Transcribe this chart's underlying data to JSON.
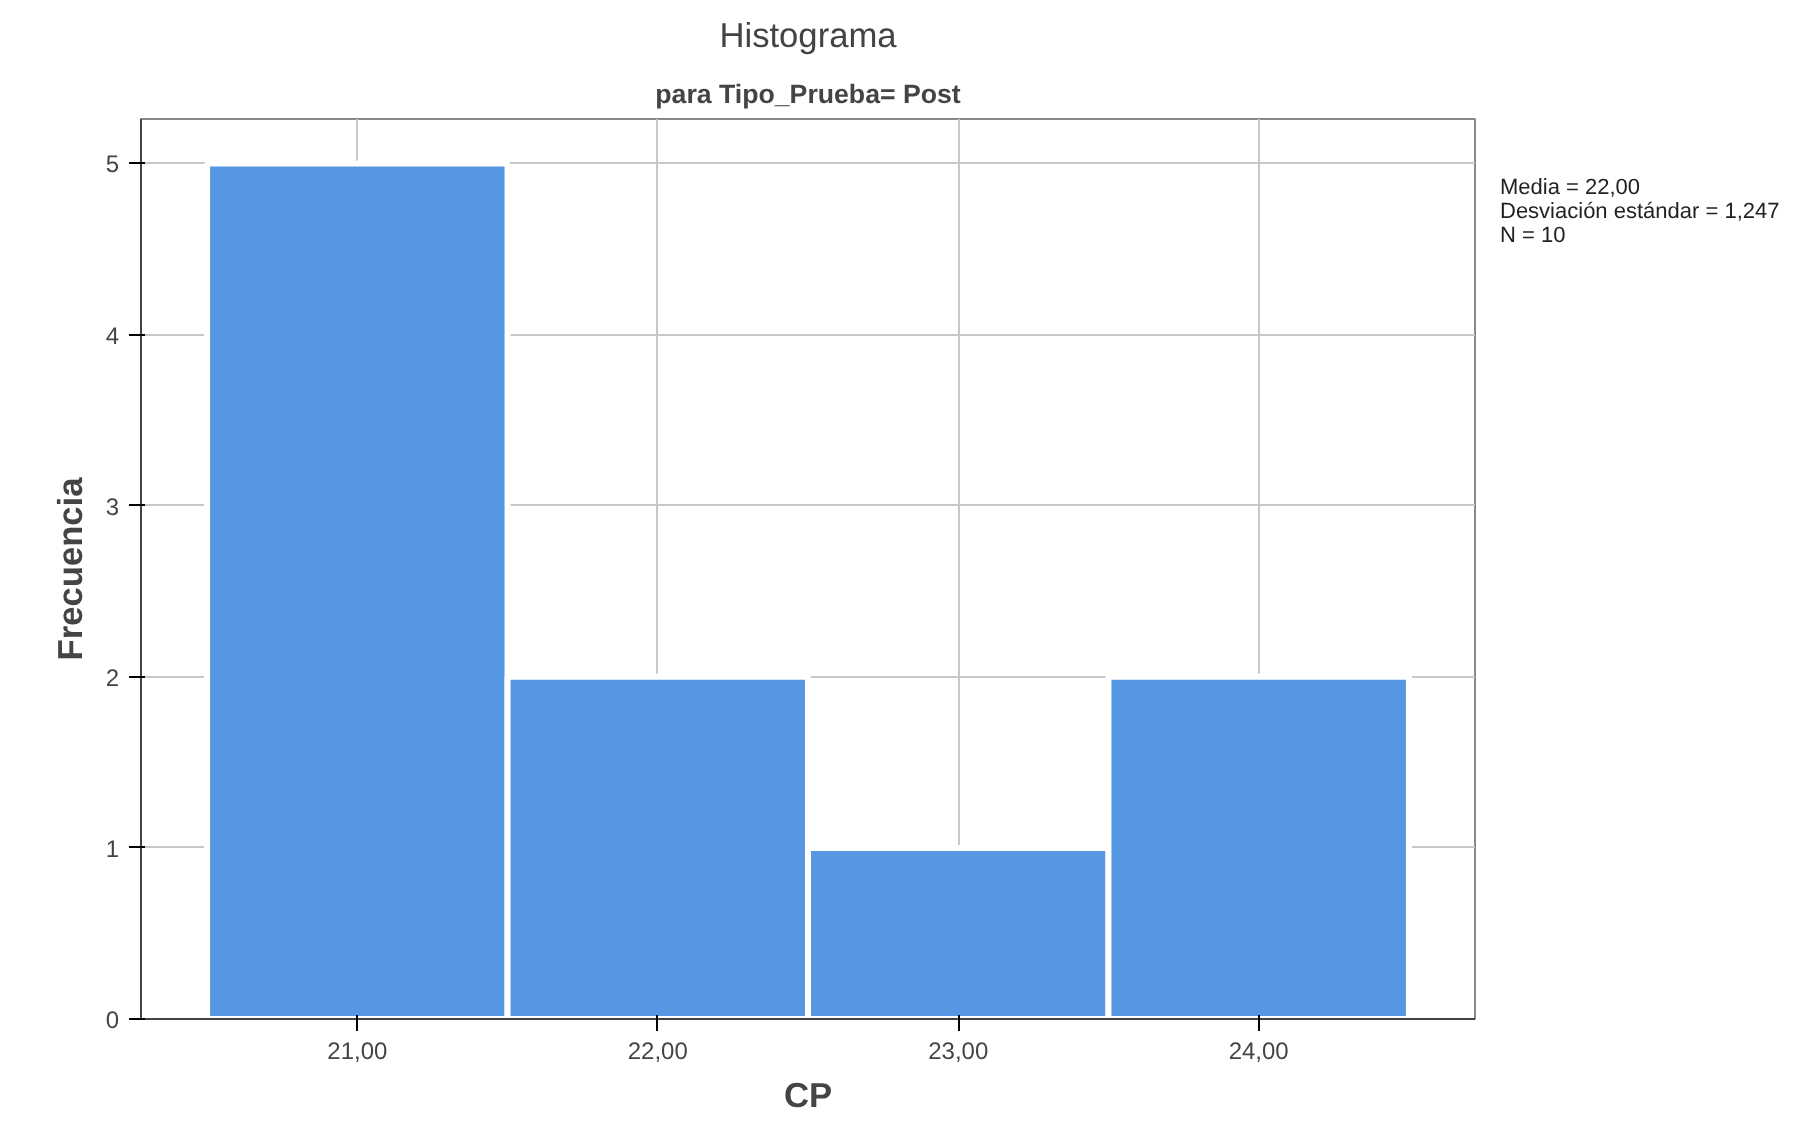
{
  "chart_data": {
    "type": "histogram",
    "title": "Histograma",
    "subtitle": "para Tipo_Prueba= Post",
    "xlabel": "CP",
    "ylabel": "Frecuencia",
    "bins": [
      20.5,
      21.5,
      22.5,
      23.5,
      24.5
    ],
    "values": [
      5,
      2,
      1,
      2
    ],
    "color": "#5597e3",
    "xlim": [
      20.28,
      24.72
    ],
    "ylim": [
      0,
      5.26
    ],
    "xticks": [
      {
        "value": 21,
        "label": "21,00"
      },
      {
        "value": 22,
        "label": "22,00"
      },
      {
        "value": 23,
        "label": "23,00"
      },
      {
        "value": 24,
        "label": "24,00"
      }
    ],
    "yticks": [
      0,
      1,
      2,
      3,
      4,
      5
    ],
    "grid": true,
    "annotations": [
      "Media = 22,00",
      "Desviación estándar = 1,247",
      "N = 10"
    ]
  }
}
